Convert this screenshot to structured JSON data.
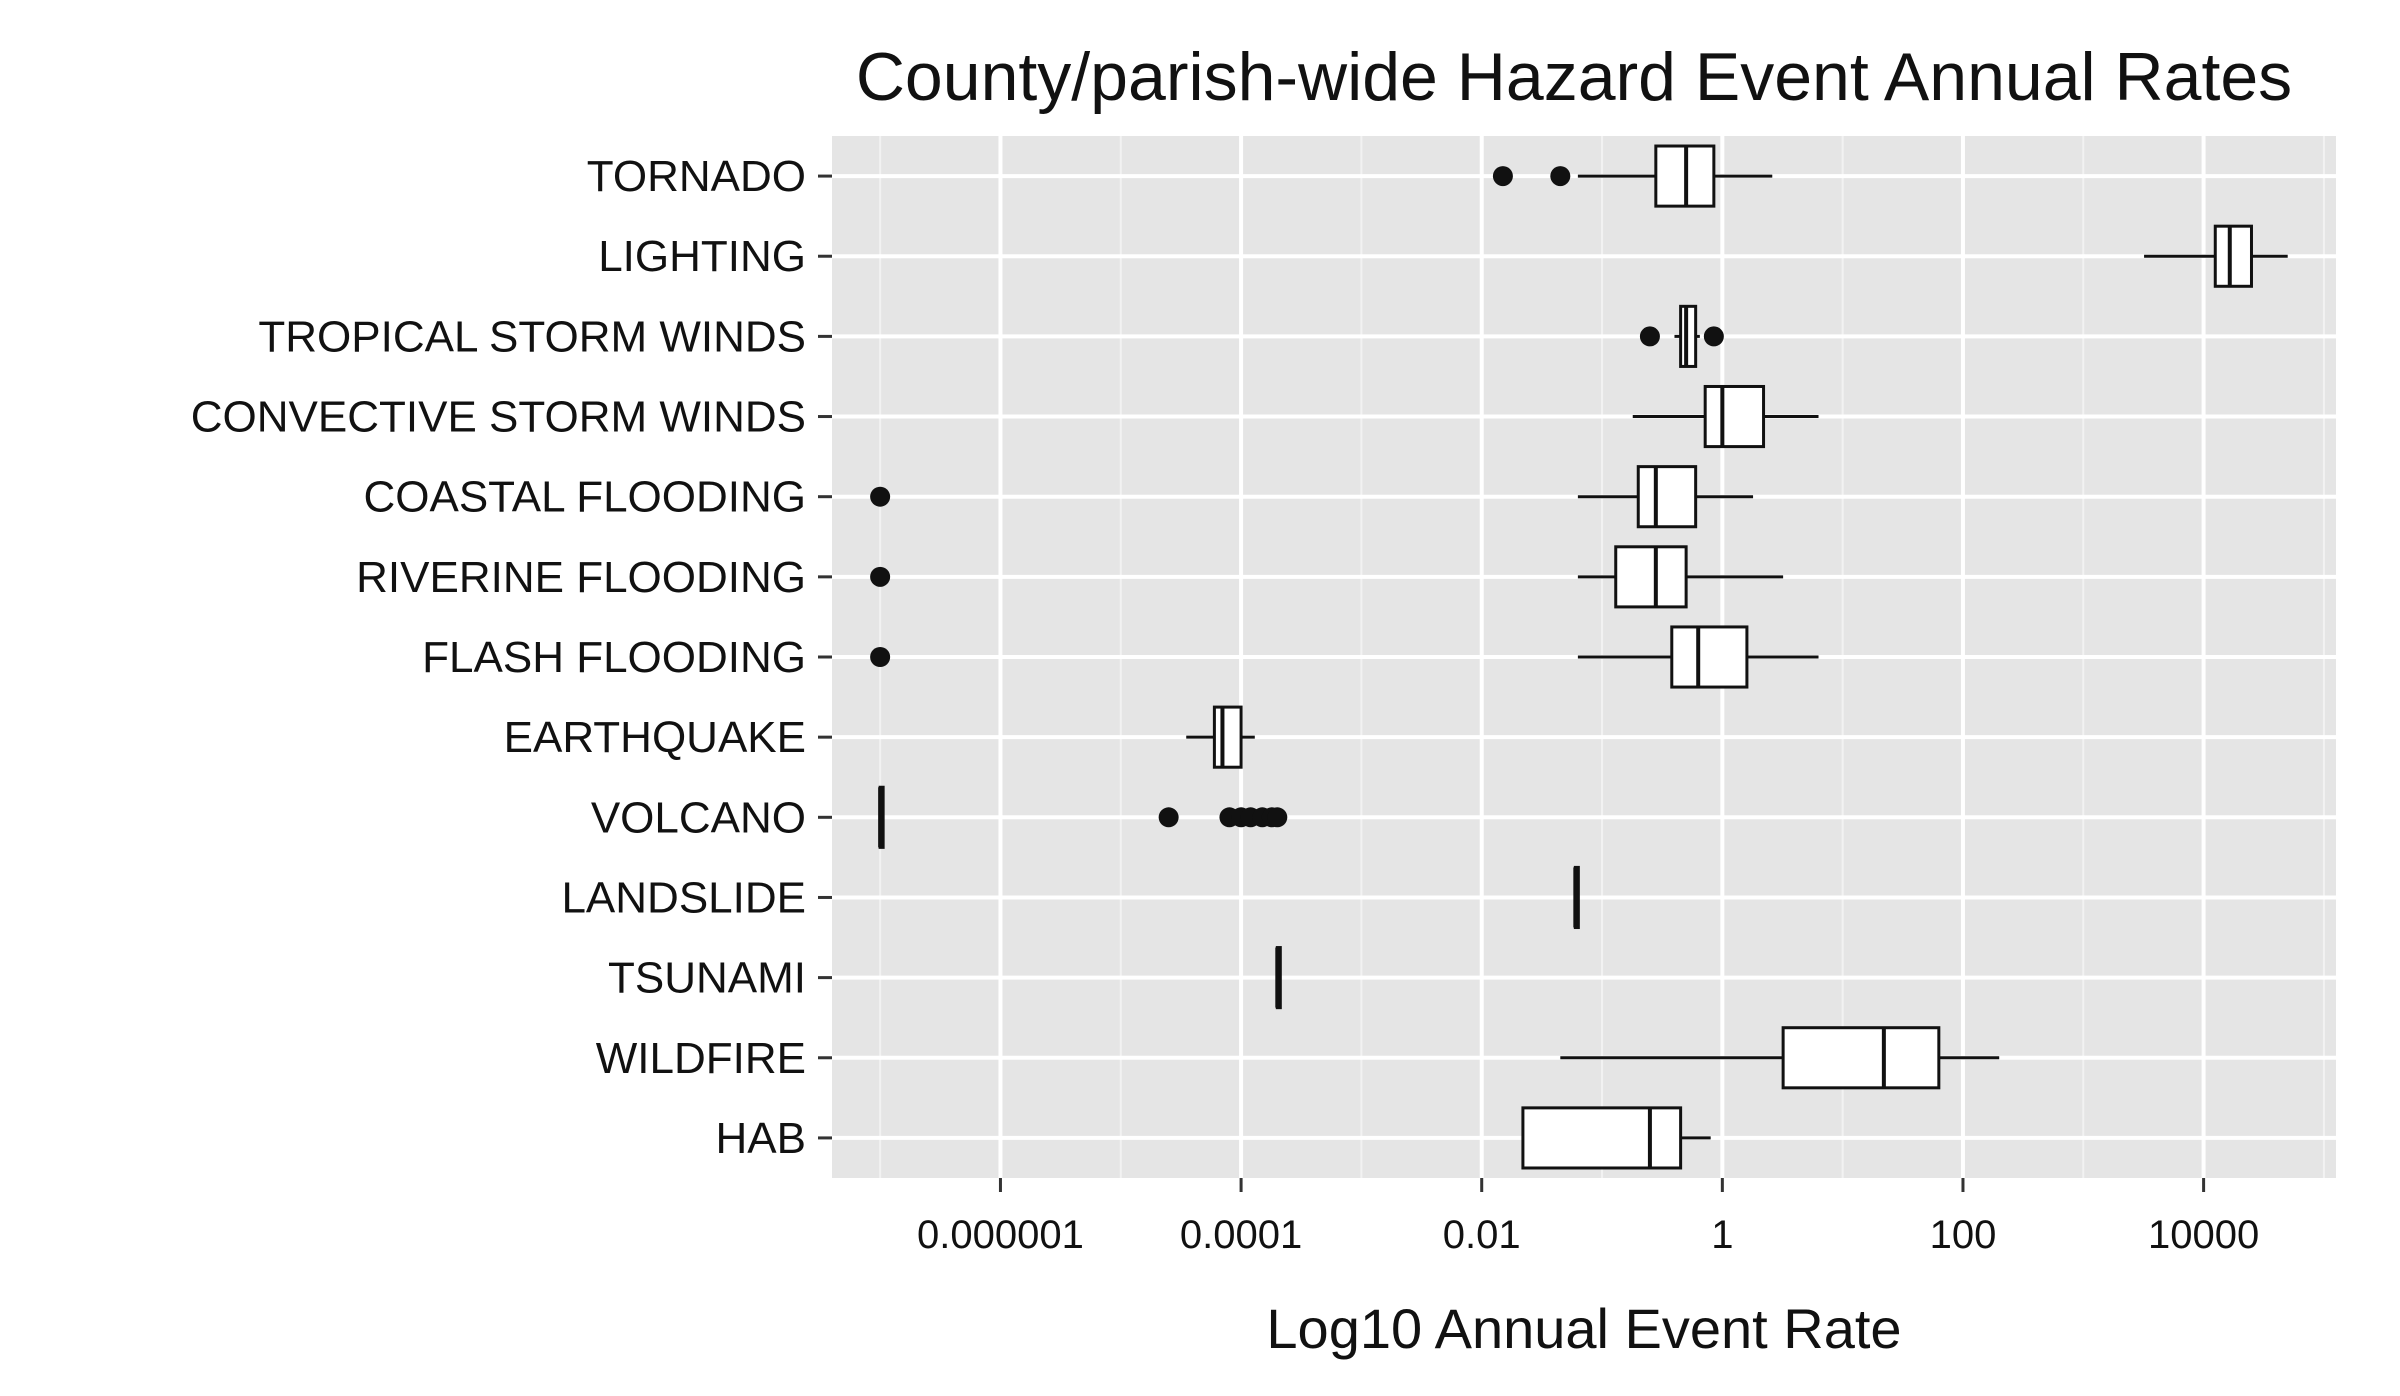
{
  "chart_data": {
    "type": "boxplot",
    "orientation": "horizontal",
    "title": "County/parish-wide Hazard Event Annual Rates",
    "xlabel": "Log10 Annual Event Rate",
    "ylabel": "",
    "x_scale": "log10",
    "xlim": [
      3.98e-08,
      126000
    ],
    "x_ticks": [
      1e-06,
      0.0001,
      0.01,
      1,
      100,
      10000
    ],
    "x_tick_labels": [
      "0.000001",
      "0.0001",
      "0.01",
      "1",
      "100",
      "10000"
    ],
    "grid": true,
    "legend": "none",
    "categories": [
      "TORNADO",
      "LIGHTING",
      "TROPICAL STORM WINDS",
      "CONVECTIVE STORM WINDS",
      "COASTAL FLOODING",
      "RIVERINE FLOODING",
      "FLASH FLOODING",
      "EARTHQUAKE",
      "VOLCANO",
      "LANDSLIDE",
      "TSUNAMI",
      "WILDFIRE",
      "HAB"
    ],
    "boxes": [
      {
        "category": "TORNADO",
        "whisker_low": 0.063,
        "q1": 0.28,
        "median": 0.5,
        "q3": 0.85,
        "whisker_high": 2.6,
        "outliers": [
          0.015,
          0.045
        ]
      },
      {
        "category": "LIGHTING",
        "whisker_low": 3200,
        "q1": 12500,
        "median": 16500,
        "q3": 25000,
        "whisker_high": 50000,
        "outliers": []
      },
      {
        "category": "TROPICAL STORM WINDS",
        "whisker_low": 0.4,
        "q1": 0.45,
        "median": 0.5,
        "q3": 0.6,
        "whisker_high": 0.65,
        "outliers": [
          0.25,
          0.85
        ]
      },
      {
        "category": "CONVECTIVE STORM WINDS",
        "whisker_low": 0.18,
        "q1": 0.72,
        "median": 1.0,
        "q3": 2.2,
        "whisker_high": 6.3,
        "outliers": []
      },
      {
        "category": "COASTAL FLOODING",
        "whisker_low": 0.063,
        "q1": 0.2,
        "median": 0.28,
        "q3": 0.6,
        "whisker_high": 1.8,
        "outliers": [
          1e-07
        ]
      },
      {
        "category": "RIVERINE FLOODING",
        "whisker_low": 0.063,
        "q1": 0.13,
        "median": 0.28,
        "q3": 0.5,
        "whisker_high": 3.2,
        "outliers": [
          1e-07
        ]
      },
      {
        "category": "FLASH FLOODING",
        "whisker_low": 0.063,
        "q1": 0.38,
        "median": 0.63,
        "q3": 1.6,
        "whisker_high": 6.3,
        "outliers": [
          1e-07
        ]
      },
      {
        "category": "EARTHQUAKE",
        "whisker_low": 3.5e-05,
        "q1": 6e-05,
        "median": 7e-05,
        "q3": 0.0001,
        "whisker_high": 0.00013,
        "outliers": []
      },
      {
        "category": "VOLCANO",
        "whisker_low": 1e-07,
        "q1": 1e-07,
        "median": 1e-07,
        "q3": 1e-07,
        "whisker_high": 1e-07,
        "outliers": [
          2.5e-05,
          8e-05,
          0.0001,
          0.00012,
          0.00015,
          0.00018,
          0.0002
        ]
      },
      {
        "category": "LANDSLIDE",
        "whisker_low": 0.06,
        "q1": 0.06,
        "median": 0.06,
        "q3": 0.06,
        "whisker_high": 0.06,
        "outliers": []
      },
      {
        "category": "TSUNAMI",
        "whisker_low": 0.0002,
        "q1": 0.0002,
        "median": 0.0002,
        "q3": 0.0002,
        "whisker_high": 0.0002,
        "outliers": []
      },
      {
        "category": "WILDFIRE",
        "whisker_low": 0.045,
        "q1": 3.2,
        "median": 22,
        "q3": 63,
        "whisker_high": 200,
        "outliers": []
      },
      {
        "category": "HAB",
        "whisker_low": 0.022,
        "q1": 0.022,
        "median": 0.25,
        "q3": 0.45,
        "whisker_high": 0.8,
        "outliers": []
      }
    ]
  }
}
